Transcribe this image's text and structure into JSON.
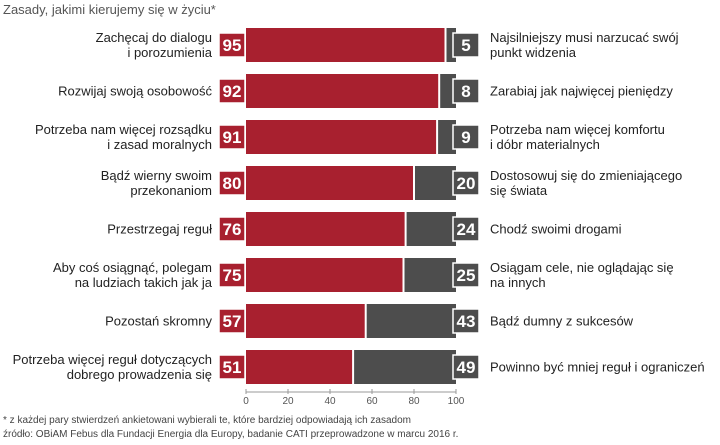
{
  "chart_data": {
    "type": "bar",
    "title": "Zasady, jakimi kierujemy się w życiu*",
    "xlim": [
      0,
      100
    ],
    "xticks": [
      0,
      20,
      40,
      60,
      80,
      100
    ],
    "series": [
      {
        "name": "Lewe stwierdzenie",
        "color": "#a8202f"
      },
      {
        "name": "Prawe stwierdzenie",
        "color": "#4d4d4d"
      }
    ],
    "rows": [
      {
        "left_label": [
          "Zachęcaj do dialogu",
          "i porozumienia"
        ],
        "left_value": 95,
        "right_label": [
          "Najsilniejszy musi narzucać swój",
          "punkt widzenia"
        ],
        "right_value": 5
      },
      {
        "left_label": [
          "Rozwijaj swoją osobowość"
        ],
        "left_value": 92,
        "right_label": [
          "Zarabiaj jak najwięcej pieniędzy"
        ],
        "right_value": 8
      },
      {
        "left_label": [
          "Potrzeba nam więcej rozsądku",
          "i zasad moralnych"
        ],
        "left_value": 91,
        "right_label": [
          "Potrzeba nam więcej komfortu",
          "i dóbr materialnych"
        ],
        "right_value": 9
      },
      {
        "left_label": [
          "Bądź wierny swoim",
          "przekonaniom"
        ],
        "left_value": 80,
        "right_label": [
          "Dostosowuj się do zmieniającego",
          "się świata"
        ],
        "right_value": 20
      },
      {
        "left_label": [
          "Przestrzegaj reguł"
        ],
        "left_value": 76,
        "right_label": [
          "Chodź swoimi drogami"
        ],
        "right_value": 24
      },
      {
        "left_label": [
          "Aby coś osiągnąć, polegam",
          "na ludziach takich jak ja"
        ],
        "left_value": 75,
        "right_label": [
          "Osiągam cele, nie oglądając się",
          "na innych"
        ],
        "right_value": 25
      },
      {
        "left_label": [
          "Pozostań skromny"
        ],
        "left_value": 57,
        "right_label": [
          "Bądź dumny z sukcesów"
        ],
        "right_value": 43
      },
      {
        "left_label": [
          "Potrzeba więcej reguł dotyczących",
          "dobrego prowadzenia się"
        ],
        "left_value": 51,
        "right_label": [
          "Powinno być mniej reguł i ograniczeń"
        ],
        "right_value": 49
      }
    ],
    "footnote": "* z każdej pary stwierdzeń ankietowani wybierali te, które bardziej odpowiadają ich zasadom",
    "source": "źródło: OBiAM Febus dla Fundacji Energia dla Europy, badanie CATI przeprowadzone w marcu 2016 r."
  }
}
